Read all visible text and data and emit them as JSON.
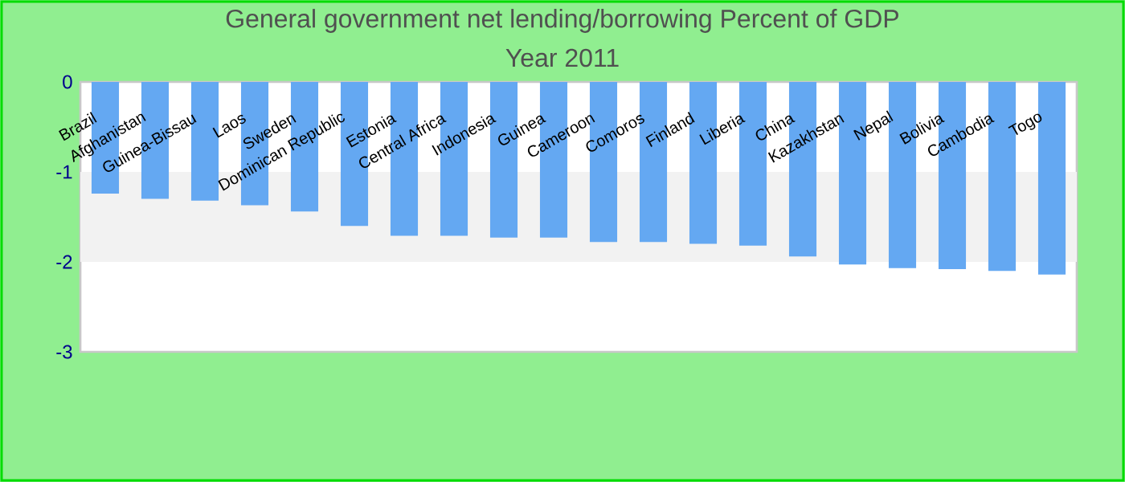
{
  "chart_data": {
    "type": "bar",
    "title": "General government net lending/borrowing  Percent of GDP",
    "subtitle": "Year 2011",
    "categories": [
      "Brazil",
      "Afghanistan",
      "Guinea-Bissau",
      "Laos",
      "Sweden",
      "Dominican Republic",
      "Estonia",
      "Central Africa",
      "Indonesia",
      "Guinea",
      "Cameroon",
      "Comoros",
      "Finland",
      "Liberia",
      "China",
      "Kazakhstan",
      "Nepal",
      "Bolivia",
      "Cambodia",
      "Togo"
    ],
    "values": [
      -1.24,
      -1.3,
      -1.32,
      -1.37,
      -1.44,
      -1.6,
      -1.71,
      -1.71,
      -1.73,
      -1.73,
      -1.78,
      -1.78,
      -1.8,
      -1.82,
      -1.94,
      -2.03,
      -2.07,
      -2.08,
      -2.1,
      -2.14
    ],
    "color": "#64a8f2",
    "ylim": [
      -3,
      0
    ],
    "yticks": [
      0,
      -1,
      -2,
      -3
    ],
    "bands": [
      {
        "axis": "y",
        "from": -2,
        "to": -1,
        "color": "#f2f2f2"
      }
    ],
    "grid": false
  }
}
